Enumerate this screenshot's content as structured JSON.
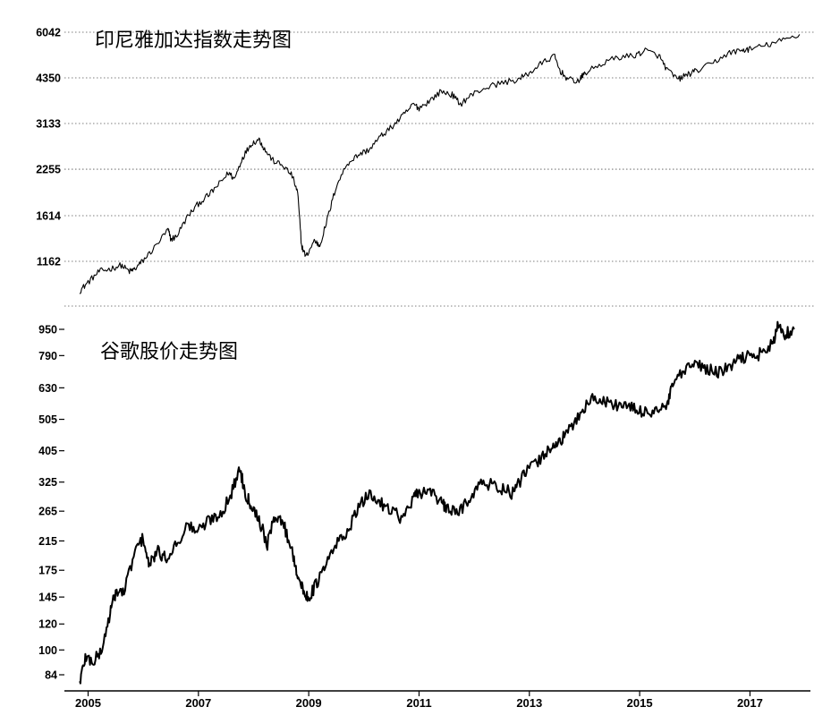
{
  "chart_data": [
    {
      "type": "line",
      "title": "印尼雅加达指数走势图",
      "scale": "log",
      "grid": true,
      "y_ticks": [
        1162,
        1614,
        2255,
        3133,
        4350,
        6042
      ],
      "ylim": [
        900,
        6042
      ],
      "series": [
        {
          "x": [
            2004.85,
            2005.0,
            2005.2,
            2005.4,
            2005.6,
            2005.75,
            2005.85,
            2006.0,
            2006.2,
            2006.45,
            2006.5,
            2006.6,
            2006.8,
            2007.0,
            2007.2,
            2007.4,
            2007.55,
            2007.65,
            2007.8,
            2007.95,
            2008.1,
            2008.2,
            2008.35,
            2008.55,
            2008.7,
            2008.8,
            2008.87,
            2008.95,
            2009.1,
            2009.2,
            2009.35,
            2009.5,
            2009.7,
            2009.9,
            2010.1,
            2010.3,
            2010.5,
            2010.7,
            2010.9,
            2011.0,
            2011.2,
            2011.4,
            2011.6,
            2011.75,
            2011.95,
            2012.2,
            2012.5,
            2012.8,
            2013.0,
            2013.2,
            2013.45,
            2013.55,
            2013.7,
            2013.9,
            2014.0,
            2014.3,
            2014.6,
            2014.9,
            2015.1,
            2015.35,
            2015.5,
            2015.7,
            2015.85,
            2016.0,
            2016.3,
            2016.6,
            2016.85,
            2017.0,
            2017.3,
            2017.6,
            2017.9
          ],
          "values": [
            940,
            1000,
            1080,
            1100,
            1130,
            1080,
            1100,
            1170,
            1280,
            1460,
            1360,
            1390,
            1600,
            1760,
            1880,
            2050,
            2200,
            2100,
            2450,
            2700,
            2800,
            2600,
            2400,
            2300,
            2150,
            1900,
            1300,
            1200,
            1350,
            1300,
            1600,
            2000,
            2350,
            2500,
            2600,
            2850,
            3050,
            3300,
            3600,
            3500,
            3700,
            3950,
            3850,
            3600,
            3850,
            4050,
            4200,
            4300,
            4500,
            4800,
            5100,
            4600,
            4300,
            4250,
            4500,
            4800,
            5050,
            5100,
            5300,
            5100,
            4600,
            4300,
            4450,
            4550,
            4800,
            5200,
            5300,
            5350,
            5500,
            5700,
            5950
          ]
        }
      ]
    },
    {
      "type": "line",
      "title": "谷歌股价走势图",
      "scale": "log",
      "grid": false,
      "y_ticks": [
        84,
        100,
        120,
        145,
        175,
        215,
        265,
        325,
        405,
        505,
        630,
        790,
        950
      ],
      "ylim": [
        72,
        1050
      ],
      "xlim": [
        2004.7,
        2017.95
      ],
      "x_ticks": [
        "2005",
        "2007",
        "2009",
        "2011",
        "2013",
        "2015",
        "2017"
      ],
      "series": [
        {
          "x": [
            2004.85,
            2004.95,
            2005.1,
            2005.25,
            2005.4,
            2005.5,
            2005.65,
            2005.85,
            2006.0,
            2006.1,
            2006.25,
            2006.4,
            2006.6,
            2006.8,
            2007.0,
            2007.2,
            2007.4,
            2007.6,
            2007.75,
            2007.85,
            2007.95,
            2008.1,
            2008.25,
            2008.4,
            2008.55,
            2008.7,
            2008.8,
            2008.9,
            2009.0,
            2009.15,
            2009.3,
            2009.5,
            2009.7,
            2009.9,
            2010.1,
            2010.3,
            2010.5,
            2010.7,
            2010.9,
            2011.0,
            2011.2,
            2011.4,
            2011.5,
            2011.7,
            2011.9,
            2012.1,
            2012.3,
            2012.5,
            2012.7,
            2012.85,
            2013.0,
            2013.2,
            2013.4,
            2013.55,
            2013.7,
            2013.9,
            2014.1,
            2014.3,
            2014.5,
            2014.7,
            2014.9,
            2015.1,
            2015.3,
            2015.5,
            2015.6,
            2015.8,
            2016.0,
            2016.2,
            2016.4,
            2016.6,
            2016.8,
            2017.0,
            2017.2,
            2017.4,
            2017.5,
            2017.65,
            2017.8
          ],
          "values": [
            80,
            95,
            92,
            100,
            130,
            150,
            150,
            200,
            220,
            180,
            200,
            190,
            210,
            240,
            230,
            250,
            260,
            300,
            360,
            300,
            280,
            250,
            210,
            260,
            240,
            200,
            170,
            150,
            145,
            160,
            180,
            210,
            230,
            270,
            300,
            280,
            270,
            250,
            290,
            300,
            310,
            280,
            270,
            260,
            290,
            320,
            320,
            310,
            300,
            330,
            360,
            380,
            420,
            430,
            460,
            520,
            580,
            580,
            560,
            560,
            540,
            530,
            540,
            550,
            650,
            700,
            750,
            720,
            700,
            720,
            770,
            790,
            800,
            850,
            960,
            920,
            950
          ]
        }
      ]
    }
  ]
}
